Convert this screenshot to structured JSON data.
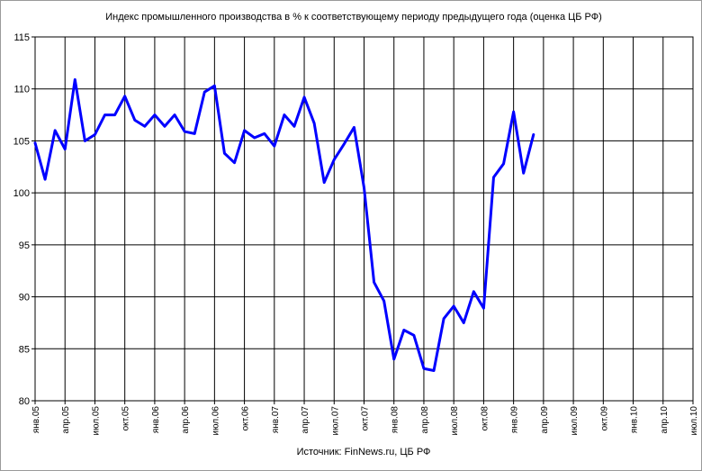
{
  "chart_data": {
    "type": "line",
    "title": "Индекс промышленного производства в % к соответствующему периоду предыдущего года (оценка ЦБ РФ)",
    "source": "Источник: FinNews.ru, ЦБ РФ",
    "ylim": [
      80,
      115
    ],
    "yticks": [
      "80",
      "85",
      "90",
      "95",
      "100",
      "105",
      "110",
      "115"
    ],
    "xticks": [
      "янв.05",
      "апр.05",
      "июл.05",
      "окт.05",
      "янв.06",
      "апр.06",
      "июл.06",
      "окт.06",
      "янв.07",
      "апр.07",
      "июл.07",
      "окт.07",
      "янв.08",
      "апр.08",
      "июл.08",
      "окт.08",
      "янв.09",
      "апр.09",
      "июл.09",
      "окт.09",
      "янв.10",
      "апр.10",
      "июл.10"
    ],
    "grid": true,
    "line_color": "#0000ff",
    "series": [
      {
        "values": [
          104.8,
          101.3,
          106.0,
          104.2,
          110.9,
          105.0,
          105.6,
          107.5,
          107.5,
          109.3,
          107.0,
          106.4,
          107.5,
          106.4,
          107.5,
          105.9,
          105.7,
          109.7,
          110.3,
          103.8,
          102.9,
          106.0,
          105.3,
          105.7,
          104.5,
          107.5,
          106.4,
          109.2,
          106.7,
          101.0,
          103.2,
          104.7,
          106.3,
          100.5,
          91.4,
          89.6,
          84.0,
          86.8,
          86.3,
          83.1,
          82.9,
          87.9,
          89.1,
          87.5,
          90.5,
          88.9,
          101.5,
          102.8,
          107.8,
          101.9,
          105.6
        ]
      }
    ]
  }
}
